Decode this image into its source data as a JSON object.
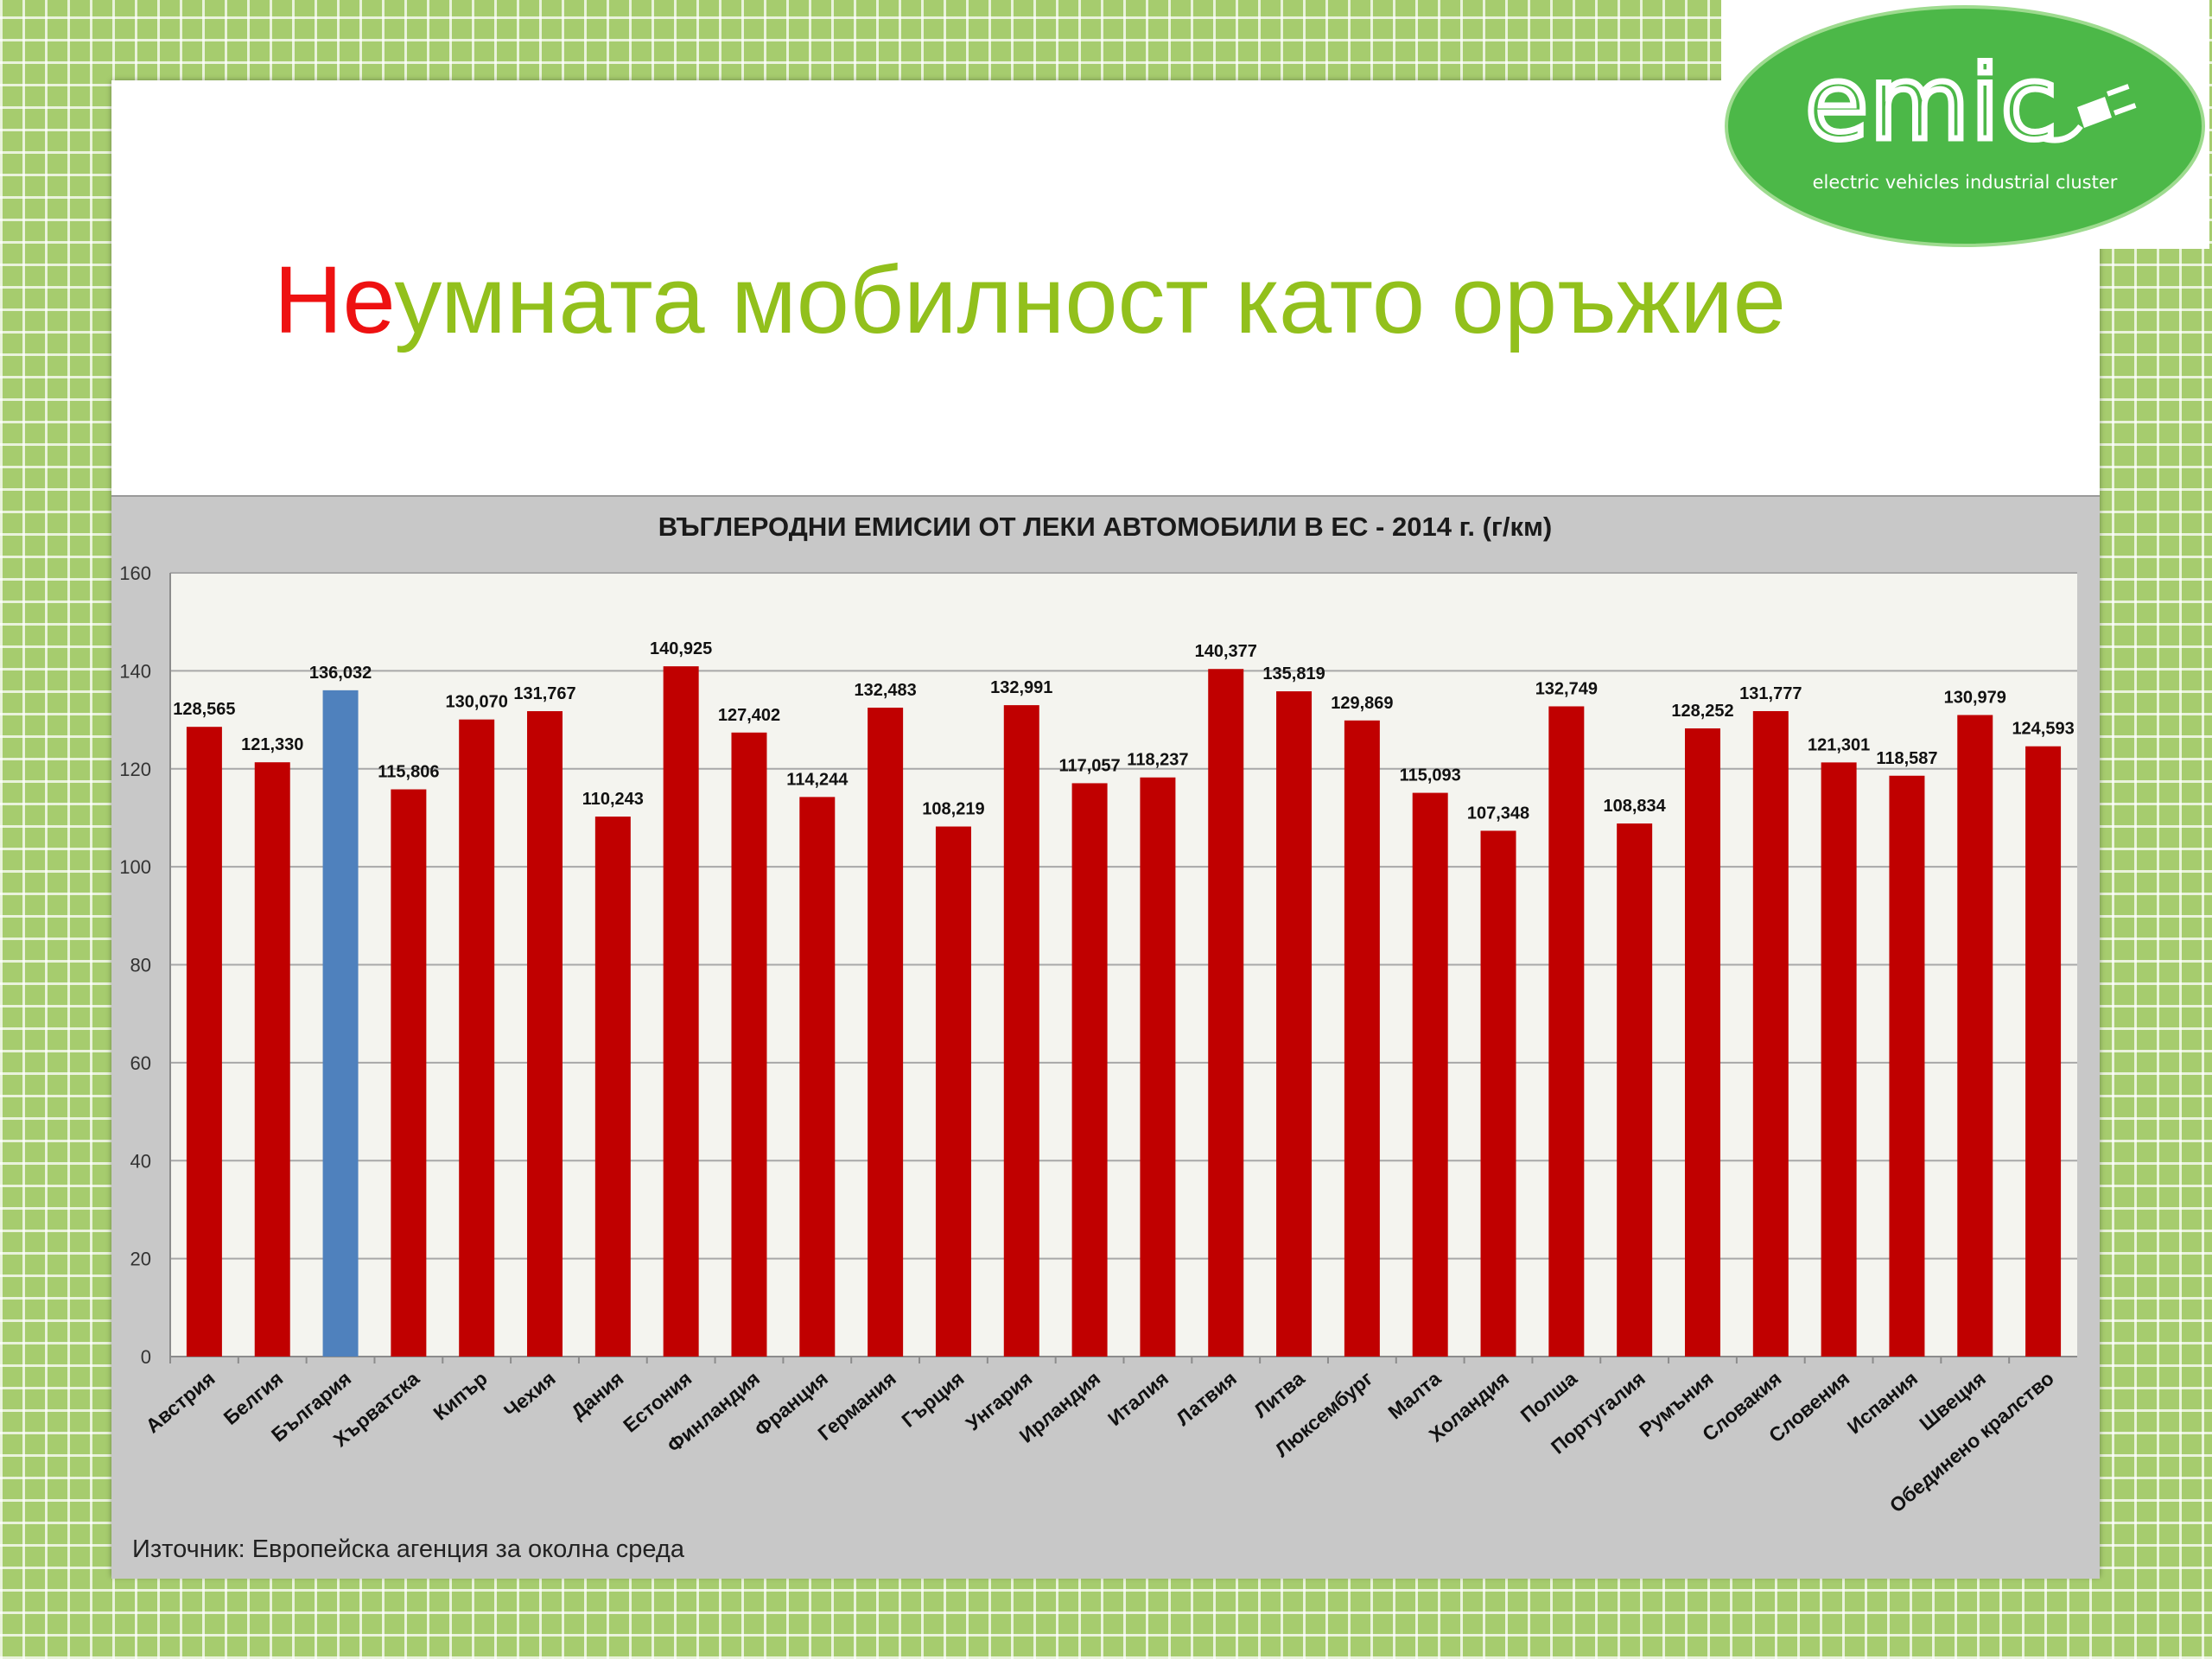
{
  "slide": {
    "title_red": "Не",
    "title_green": "умната мобилност като оръжие",
    "source": "Източник: Европейска агенция за околна среда"
  },
  "logo": {
    "wordmark": "emic",
    "tagline": "electric vehicles industrial cluster",
    "color": "#4cb848"
  },
  "chart_data": {
    "type": "bar",
    "title": "ВЪГЛЕРОДНИ ЕМИСИИ ОТ ЛЕКИ АВТОМОБИЛИ В ЕС - 2014 г. (г/км)",
    "xlabel": "",
    "ylabel": "",
    "ylim": [
      0,
      160
    ],
    "yticks": [
      0,
      20,
      40,
      60,
      80,
      100,
      120,
      140,
      160
    ],
    "grid": true,
    "bar_color": "#c00000",
    "highlight_color": "#4f81bd",
    "highlight_category": "България",
    "categories": [
      "Австрия",
      "Белгия",
      "България",
      "Хърватска",
      "Кипър",
      "Чехия",
      "Дания",
      "Естония",
      "Финландия",
      "Франция",
      "Германия",
      "Гърция",
      "Унгария",
      "Ирландия",
      "Италия",
      "Латвия",
      "Литва",
      "Люксембург",
      "Малта",
      "Холандия",
      "Полша",
      "Португалия",
      "Румъния",
      "Словакия",
      "Словения",
      "Испания",
      "Швеция",
      "Обединено кралство"
    ],
    "values": [
      128.565,
      121.33,
      136.032,
      115.806,
      130.07,
      131.767,
      110.243,
      140.925,
      127.402,
      114.244,
      132.483,
      108.219,
      132.991,
      117.057,
      118.237,
      140.377,
      135.819,
      129.869,
      115.093,
      107.348,
      132.749,
      108.834,
      128.252,
      131.777,
      121.301,
      118.587,
      130.979,
      124.593
    ],
    "value_labels": [
      "128,565",
      "121,330",
      "136,032",
      "115,806",
      "130,070",
      "131,767",
      "110,243",
      "140,925",
      "127,402",
      "114,244",
      "132,483",
      "108,219",
      "132,991",
      "117,057",
      "118,237",
      "140,377",
      "135,819",
      "129,869",
      "115,093",
      "107,348",
      "132,749",
      "108,834",
      "128,252",
      "131,777",
      "121,301",
      "118,587",
      "130,979",
      "124,593"
    ]
  }
}
